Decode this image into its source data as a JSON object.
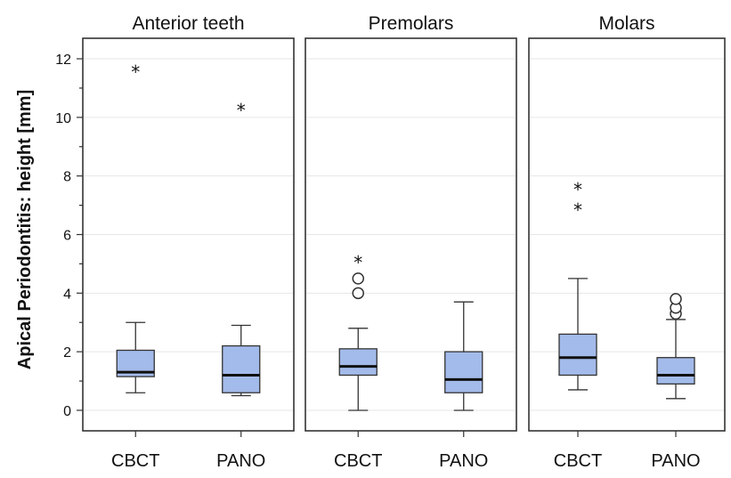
{
  "chart_data": {
    "type": "boxplot",
    "ylabel": "Apical Periodontitis: height [mm]",
    "ylim": [
      -0.7,
      12.7
    ],
    "yticks": [
      0,
      2,
      4,
      6,
      8,
      10,
      12
    ],
    "box_color": "#a3bbea",
    "panels": [
      {
        "title": "Anterior teeth",
        "boxes": [
          {
            "category": "CBCT",
            "min": 0.6,
            "q1": 1.15,
            "median": 1.3,
            "q3": 2.05,
            "max": 3.0,
            "outliers_circle": [],
            "outliers_star": [
              11.6
            ]
          },
          {
            "category": "PANO",
            "min": 0.5,
            "q1": 0.6,
            "median": 1.2,
            "q3": 2.2,
            "max": 2.9,
            "outliers_circle": [],
            "outliers_star": [
              10.3
            ]
          }
        ]
      },
      {
        "title": "Premolars",
        "boxes": [
          {
            "category": "CBCT",
            "min": 0.0,
            "q1": 1.2,
            "median": 1.5,
            "q3": 2.1,
            "max": 2.8,
            "outliers_circle": [
              4.0,
              4.5
            ],
            "outliers_star": [
              5.1
            ]
          },
          {
            "category": "PANO",
            "min": 0.0,
            "q1": 0.6,
            "median": 1.05,
            "q3": 2.0,
            "max": 3.7,
            "outliers_circle": [],
            "outliers_star": []
          }
        ]
      },
      {
        "title": "Molars",
        "boxes": [
          {
            "category": "CBCT",
            "min": 0.7,
            "q1": 1.2,
            "median": 1.8,
            "q3": 2.6,
            "max": 4.5,
            "outliers_circle": [],
            "outliers_star": [
              6.9,
              7.6
            ]
          },
          {
            "category": "PANO",
            "min": 0.4,
            "q1": 0.9,
            "median": 1.2,
            "q3": 1.8,
            "max": 3.1,
            "outliers_circle": [
              3.3,
              3.5,
              3.8
            ],
            "outliers_star": []
          }
        ]
      }
    ]
  }
}
